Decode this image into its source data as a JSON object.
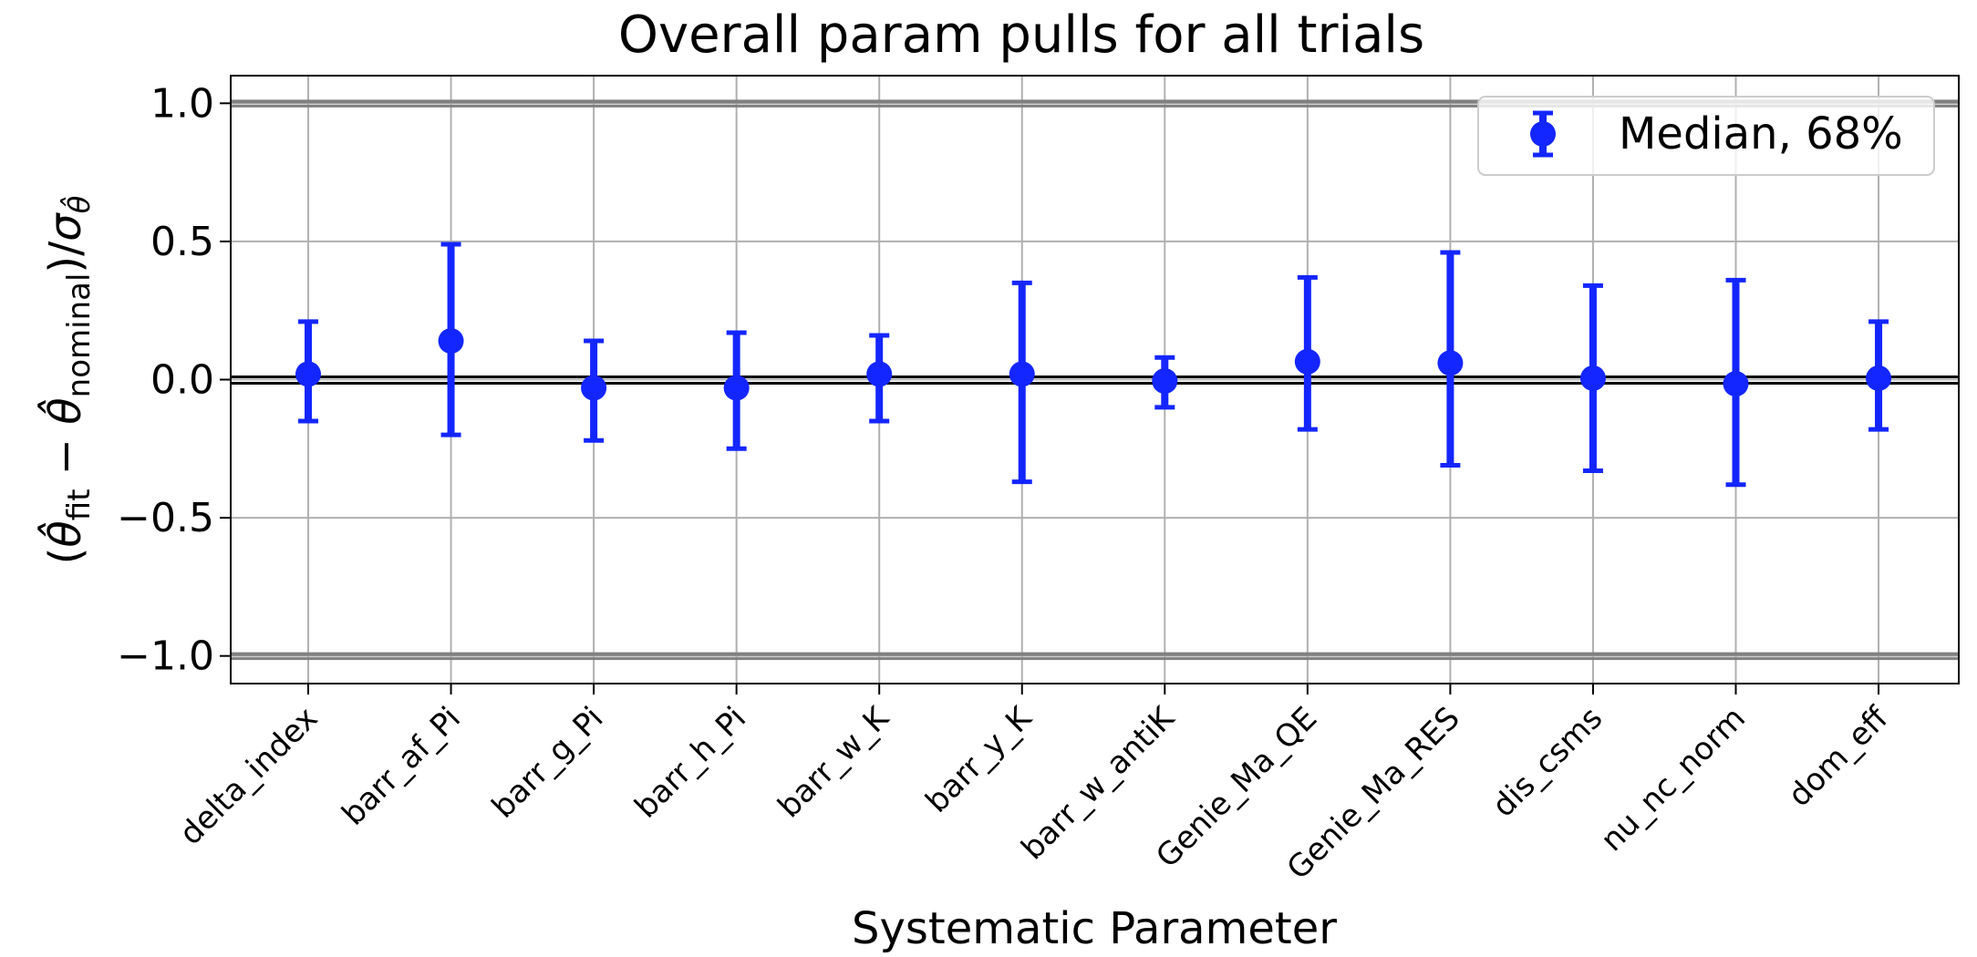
{
  "chart_data": {
    "type": "scatter",
    "title": "Overall param pulls for all trials",
    "xlabel": "Systematic Parameter",
    "ylabel": {
      "open": "(",
      "theta": "θ̂",
      "fit_sub": "fit",
      "minus": " − ",
      "nominal_sub": "nominal",
      "close_slash": ")/",
      "sigma": "σ",
      "sigma_sub": "θ̂"
    },
    "ylim": [
      -1.1,
      1.1
    ],
    "yticks": [
      1.0,
      0.5,
      0.0,
      -0.5,
      -1.0
    ],
    "ytick_labels": [
      "1.0",
      "0.5",
      "0.0",
      "−0.5",
      "−1.0"
    ],
    "reference_lines": [
      1.0,
      0.0,
      -1.0
    ],
    "grid": true,
    "legend": {
      "label": "Median, 68%",
      "position": "top-right"
    },
    "colors": {
      "series": "#1426ff",
      "reference": "#808080",
      "zero": "#000000",
      "grid": "#b0b0b0"
    },
    "categories": [
      "delta_index",
      "barr_af_Pi",
      "barr_g_Pi",
      "barr_h_Pi",
      "barr_w_K",
      "barr_y_K",
      "barr_w_antiK",
      "Genie_Ma_QE",
      "Genie_Ma_RES",
      "dis_csms",
      "nu_nc_norm",
      "dom_eff"
    ],
    "series": [
      {
        "name": "Median, 68%",
        "values": [
          0.02,
          0.14,
          -0.03,
          -0.03,
          0.02,
          0.02,
          -0.005,
          0.065,
          0.06,
          0.005,
          -0.015,
          0.005
        ],
        "lower": [
          -0.15,
          -0.2,
          -0.22,
          -0.25,
          -0.15,
          -0.37,
          -0.1,
          -0.18,
          -0.31,
          -0.33,
          -0.38,
          -0.18
        ],
        "upper": [
          0.21,
          0.49,
          0.14,
          0.17,
          0.16,
          0.35,
          0.08,
          0.37,
          0.46,
          0.34,
          0.36,
          0.21
        ]
      }
    ]
  }
}
